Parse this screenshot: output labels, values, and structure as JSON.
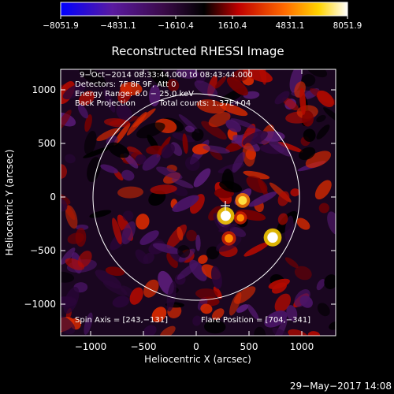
{
  "colorbar": {
    "ticks": [
      "−8051.9",
      "−4831.1",
      "−1610.4",
      "1610.4",
      "4831.1",
      "8051.9"
    ],
    "min": -8051.9,
    "max": 8051.9,
    "colormap": "blue-purple-black-red-orange-yellow-white"
  },
  "plot": {
    "title": "Reconstructed RHESSI Image",
    "xlabel": "Heliocentric X (arcsec)",
    "ylabel": "Heliocentric Y (arcsec)",
    "x_ticks": [
      "−1000",
      "−500",
      "0",
      "500",
      "1000"
    ],
    "y_ticks": [
      "1000",
      "500",
      "0",
      "−500",
      "−1000"
    ],
    "annotations": [
      "9−Oct−2014 08:33:44.000 to 08:43:44.000",
      "Detectors: 7F 8F 9F, Att 0",
      "Energy Range: 6.0 − 25.0 keV",
      "Back Projection",
      "Total counts: 1.37E+04"
    ],
    "spin_axis": "Spin Axis = [243,−131]",
    "flare_position": "Flare Position = [704,−341]"
  },
  "footer": {
    "timestamp": "29−May−2017 14:08"
  },
  "chart_data": {
    "type": "heatmap",
    "title": "Reconstructed RHESSI Image",
    "xlabel": "Heliocentric X (arcsec)",
    "ylabel": "Heliocentric Y (arcsec)",
    "xlim": [
      -1300,
      1300
    ],
    "ylim": [
      -1300,
      1300
    ],
    "zlim": [
      -8051.9,
      8051.9
    ],
    "solar_limb_radius_arcsec": 980,
    "spin_axis": [
      243,
      -131
    ],
    "flare_position": [
      704,
      -341
    ],
    "peaks": [
      {
        "x": 704,
        "y": -341,
        "value": 8051.9
      },
      {
        "x": 260,
        "y": -130,
        "value": 7600
      },
      {
        "x": 420,
        "y": 20,
        "value": 5200
      },
      {
        "x": 290,
        "y": -350,
        "value": 4800
      },
      {
        "x": 400,
        "y": -150,
        "value": 3500
      }
    ]
  }
}
